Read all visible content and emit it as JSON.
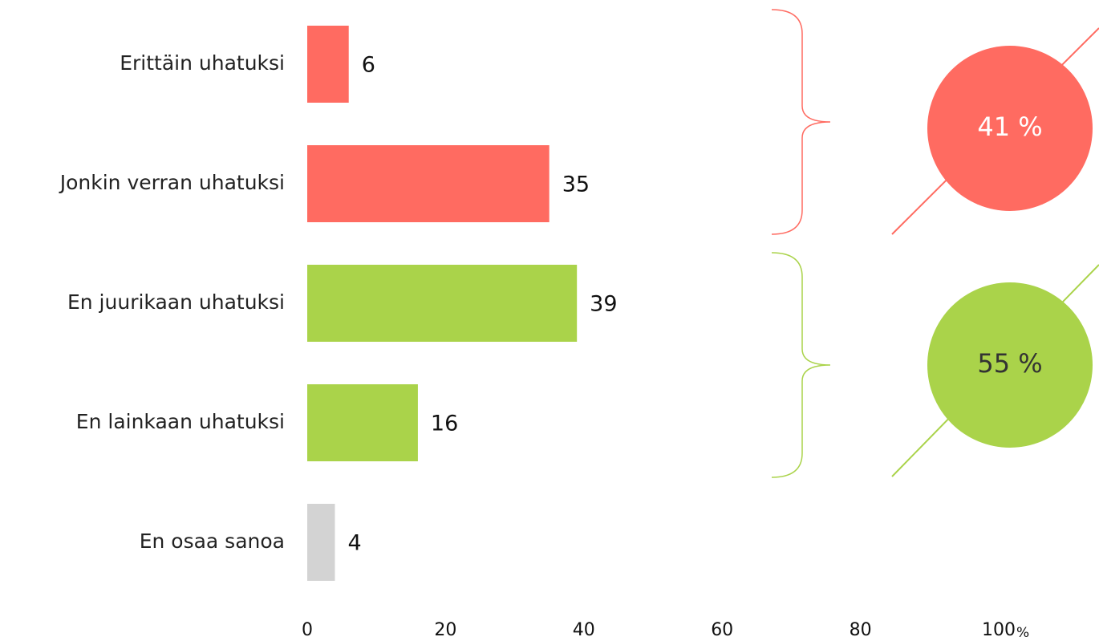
{
  "chart_data": {
    "type": "barh",
    "categories": [
      "Erittäin uhatuksi",
      "Jonkin verran uhatuksi",
      "En juurikaan uhatuksi",
      "En lainkaan uhatuksi",
      "En osaa sanoa"
    ],
    "values": [
      6,
      35,
      39,
      16,
      4
    ],
    "colors": [
      "#ff6b61",
      "#ff6b61",
      "#aad34a",
      "#aad34a",
      "#d3d3d3"
    ],
    "xlim": [
      0,
      100
    ],
    "xticks": [
      0,
      20,
      40,
      60,
      80,
      100
    ],
    "xlabel": "%",
    "annotations": [
      {
        "text": "41 %",
        "color": "#ff6b61",
        "text_color": "#ffffff"
      },
      {
        "text": "55 %",
        "color": "#aad34a",
        "text_color": "#333333"
      }
    ]
  }
}
